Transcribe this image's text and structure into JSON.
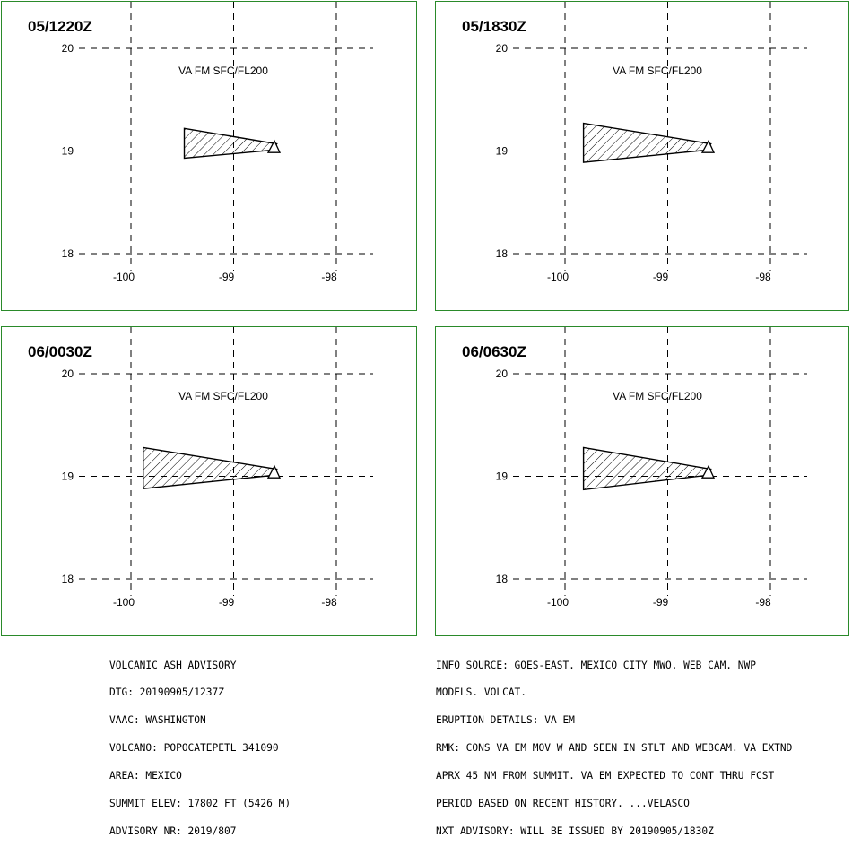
{
  "panels": [
    {
      "time": "05/1220Z",
      "label": "VA FM SFC/FL200",
      "polygon": [
        [
          -99.48,
          19.22
        ],
        [
          -98.58,
          19.07
        ],
        [
          -98.62,
          19.01
        ],
        [
          -99.48,
          18.93
        ]
      ]
    },
    {
      "time": "05/1830Z",
      "label": "VA FM SFC/FL200",
      "polygon": [
        [
          -99.82,
          19.27
        ],
        [
          -98.58,
          19.07
        ],
        [
          -98.62,
          19.01
        ],
        [
          -99.82,
          18.89
        ]
      ]
    },
    {
      "time": "06/0030Z",
      "label": "VA FM SFC/FL200",
      "polygon": [
        [
          -99.88,
          19.28
        ],
        [
          -98.58,
          19.07
        ],
        [
          -98.62,
          19.01
        ],
        [
          -99.88,
          18.88
        ]
      ]
    },
    {
      "time": "06/0630Z",
      "label": "VA FM SFC/FL200",
      "polygon": [
        [
          -99.82,
          19.28
        ],
        [
          -98.58,
          19.07
        ],
        [
          -98.62,
          19.01
        ],
        [
          -99.82,
          18.87
        ]
      ]
    }
  ],
  "axes": {
    "lat_ticks": [
      "20",
      "19",
      "18"
    ],
    "lon_ticks": [
      "-100",
      "-99",
      "-98"
    ],
    "lat_range": [
      18,
      20
    ],
    "lon_range": [
      -100,
      -98
    ]
  },
  "volcano": {
    "name": "POPOCATEPETL",
    "lat": 19.02,
    "lon": -98.62
  },
  "advisory_left": [
    "VOLCANIC ASH ADVISORY",
    "DTG: 20190905/1237Z",
    "VAAC: WASHINGTON",
    "VOLCANO: POPOCATEPETL 341090",
    "AREA: MEXICO",
    "SUMMIT ELEV: 17802 FT (5426 M)",
    "ADVISORY NR: 2019/807"
  ],
  "advisory_right": [
    "INFO SOURCE: GOES-EAST. MEXICO CITY MWO. WEB CAM. NWP",
    "MODELS. VOLCAT.",
    "ERUPTION DETAILS: VA EM",
    "RMK: CONS VA EM MOV W AND SEEN IN STLT AND WEBCAM. VA EXTND",
    "APRX 45 NM FROM SUMMIT. VA EM EXPECTED TO CONT THRU FCST",
    "PERIOD BASED ON RECENT HISTORY. ...VELASCO",
    "NXT ADVISORY: WILL BE ISSUED BY 20190905/1830Z"
  ],
  "colors": {
    "panel_border": "#2a8a2a",
    "ink": "#000000",
    "background": "#ffffff"
  }
}
